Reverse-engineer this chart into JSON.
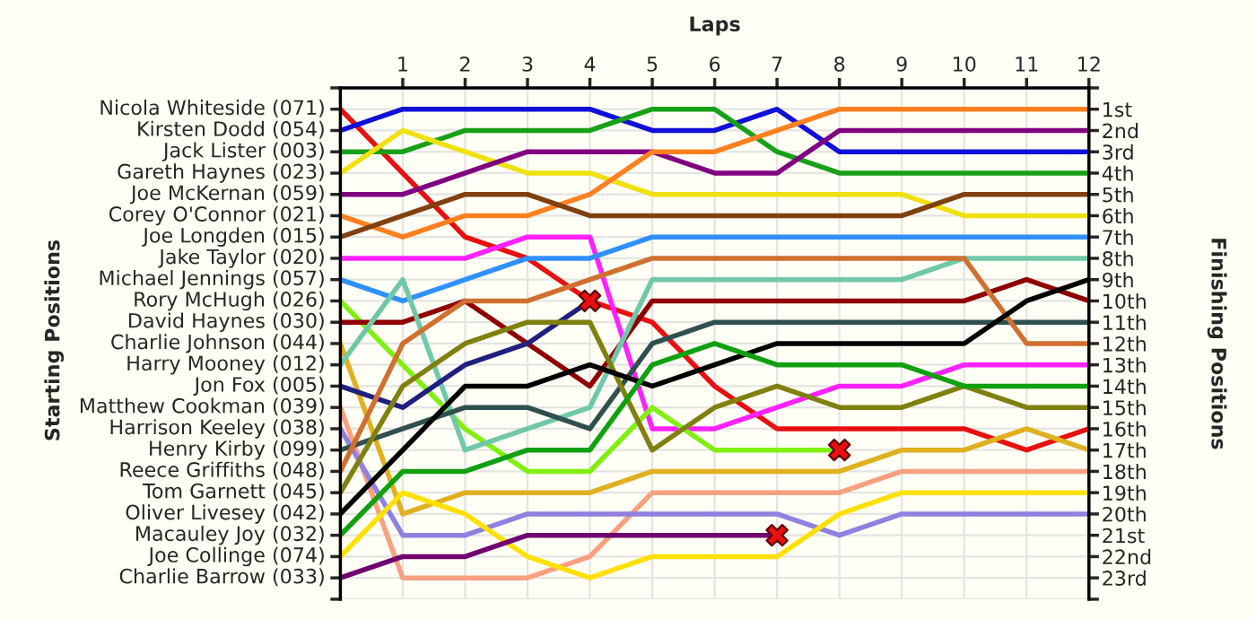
{
  "chart_data": {
    "type": "line",
    "xlabel": "Laps",
    "ylabel": "Finishing Positions",
    "annotations": [
      "Starting Positions"
    ],
    "x": [
      0,
      1,
      2,
      3,
      4,
      5,
      6,
      7,
      8,
      9,
      10,
      11,
      12
    ],
    "xlim": [
      0,
      12
    ],
    "xticks": [
      1,
      2,
      3,
      4,
      5,
      6,
      7,
      8,
      9,
      10,
      11,
      12
    ],
    "ylim": [
      24,
      0
    ],
    "yticks": [
      {
        "value": 0,
        "label": null
      },
      {
        "value": 1,
        "label": "1st"
      },
      {
        "value": 2,
        "label": "2nd"
      },
      {
        "value": 3,
        "label": "3rd"
      },
      {
        "value": 4,
        "label": "4th"
      },
      {
        "value": 5,
        "label": "5th"
      },
      {
        "value": 6,
        "label": "6th"
      },
      {
        "value": 7,
        "label": "7th"
      },
      {
        "value": 8,
        "label": "8th"
      },
      {
        "value": 9,
        "label": "9th"
      },
      {
        "value": 10,
        "label": "10th"
      },
      {
        "value": 11,
        "label": "11th"
      },
      {
        "value": 12,
        "label": "12th"
      },
      {
        "value": 13,
        "label": "13th"
      },
      {
        "value": 14,
        "label": "14th"
      },
      {
        "value": 15,
        "label": "15th"
      },
      {
        "value": 16,
        "label": "16th"
      },
      {
        "value": 17,
        "label": "17th"
      },
      {
        "value": 18,
        "label": "18th"
      },
      {
        "value": 19,
        "label": "19th"
      },
      {
        "value": 20,
        "label": "20th"
      },
      {
        "value": 21,
        "label": "21st"
      },
      {
        "value": 22,
        "label": "22nd"
      },
      {
        "value": 23,
        "label": "23rd"
      },
      {
        "value": 24,
        "label": null
      }
    ],
    "grid": true,
    "legend": false,
    "marker": "none",
    "line_style": "solid",
    "series": [
      {
        "name": "Nicola Whiteside (071)",
        "color": "#e81010",
        "values": [
          1,
          4,
          7,
          8,
          10,
          11,
          14,
          16,
          16,
          16,
          16,
          17,
          16
        ]
      },
      {
        "name": "Kirsten Dodd (054)",
        "color": "#1010d8",
        "values": [
          2,
          1,
          1,
          1,
          1,
          2,
          2,
          1,
          3,
          3,
          3,
          3,
          3
        ]
      },
      {
        "name": "Jack Lister (003)",
        "color": "#18a018",
        "values": [
          3,
          3,
          2,
          2,
          2,
          1,
          1,
          3,
          4,
          4,
          4,
          4,
          4
        ]
      },
      {
        "name": "Gareth Haynes (023)",
        "color": "#f0e010",
        "values": [
          4,
          2,
          3,
          4,
          4,
          5,
          5,
          5,
          5,
          5,
          6,
          6,
          6
        ]
      },
      {
        "name": "Joe McKernan (059)",
        "color": "#800080",
        "values": [
          5,
          5,
          4,
          3,
          3,
          3,
          4,
          4,
          2,
          2,
          2,
          2,
          2
        ]
      },
      {
        "name": "Corey O'Connor (021)",
        "color": "#ff8020",
        "values": [
          6,
          7,
          6,
          6,
          5,
          3,
          3,
          2,
          1,
          1,
          1,
          1,
          1
        ]
      },
      {
        "name": "Joe Longden (015)",
        "color": "#804010",
        "values": [
          7,
          6,
          5,
          5,
          6,
          6,
          6,
          6,
          6,
          6,
          5,
          5,
          5
        ]
      },
      {
        "name": "Jake Taylor (020)",
        "color": "#ff20ff",
        "values": [
          8,
          8,
          8,
          7,
          7,
          16,
          16,
          15,
          14,
          14,
          13,
          13,
          13
        ]
      },
      {
        "name": "Michael Jennings (057)",
        "color": "#3090ff",
        "values": [
          9,
          10,
          9,
          8,
          8,
          7,
          7,
          7,
          7,
          7,
          7,
          7,
          7
        ]
      },
      {
        "name": "Rory McHugh (026)",
        "color": "#80f010",
        "values": [
          10,
          13,
          16,
          18,
          18,
          15,
          17,
          17,
          17,
          null,
          null,
          null,
          null
        ]
      },
      {
        "name": "David Haynes (030)",
        "color": "#900000",
        "values": [
          11,
          11,
          10,
          12,
          14,
          10,
          10,
          10,
          10,
          10,
          10,
          9,
          10
        ]
      },
      {
        "name": "Charlie Johnson (044)",
        "color": "#e0b020",
        "values": [
          12,
          20,
          19,
          19,
          19,
          18,
          18,
          18,
          18,
          17,
          17,
          16,
          17
        ]
      },
      {
        "name": "Harry Mooney (012)",
        "color": "#70c8a8",
        "values": [
          13,
          9,
          17,
          16,
          15,
          9,
          9,
          9,
          9,
          9,
          8,
          8,
          8
        ]
      },
      {
        "name": "Jon Fox (005)",
        "color": "#202080",
        "values": [
          14,
          15,
          13,
          12,
          10,
          null,
          null,
          null,
          null,
          null,
          null,
          null,
          null
        ]
      },
      {
        "name": "Matthew Cookman (039)",
        "color": "#f8a080",
        "values": [
          15,
          23,
          23,
          23,
          22,
          19,
          19,
          19,
          19,
          18,
          18,
          18,
          18
        ]
      },
      {
        "name": "Harrison Keeley (038)",
        "color": "#9080e0",
        "values": [
          16,
          21,
          21,
          20,
          20,
          20,
          20,
          20,
          21,
          20,
          20,
          20,
          20
        ]
      },
      {
        "name": "Henry Kirby (099)",
        "color": "#305050",
        "values": [
          17,
          16,
          15,
          15,
          16,
          12,
          11,
          11,
          11,
          11,
          11,
          11,
          11
        ]
      },
      {
        "name": "Reece Griffiths (048)",
        "color": "#d07030",
        "values": [
          18,
          12,
          10,
          10,
          9,
          8,
          8,
          8,
          8,
          8,
          8,
          12,
          12
        ]
      },
      {
        "name": "Tom Garnett (045)",
        "color": "#808010",
        "values": [
          19,
          14,
          12,
          11,
          11,
          17,
          15,
          14,
          15,
          15,
          14,
          15,
          15
        ]
      },
      {
        "name": "Oliver Livesey (042)",
        "color": "#000000",
        "values": [
          20,
          17,
          14,
          14,
          13,
          14,
          13,
          12,
          12,
          12,
          12,
          10,
          9
        ]
      },
      {
        "name": "Macauley Joy (032)",
        "color": "#10a010",
        "values": [
          21,
          18,
          18,
          17,
          17,
          13,
          12,
          13,
          13,
          13,
          14,
          14,
          14
        ]
      },
      {
        "name": "Joe Collinge (074)",
        "color": "#ffe000",
        "values": [
          22,
          19,
          20,
          22,
          23,
          22,
          22,
          22,
          20,
          19,
          19,
          19,
          19
        ]
      },
      {
        "name": "Charlie Barrow (033)",
        "color": "#700070",
        "values": [
          23,
          22,
          22,
          21,
          21,
          21,
          21,
          21,
          null,
          null,
          null,
          null,
          null
        ]
      },
      {
        "type": "scatter",
        "marker": "cross",
        "color": "#e81010",
        "x": [
          4,
          7,
          8
        ],
        "values": [
          10,
          21,
          17
        ]
      }
    ]
  }
}
